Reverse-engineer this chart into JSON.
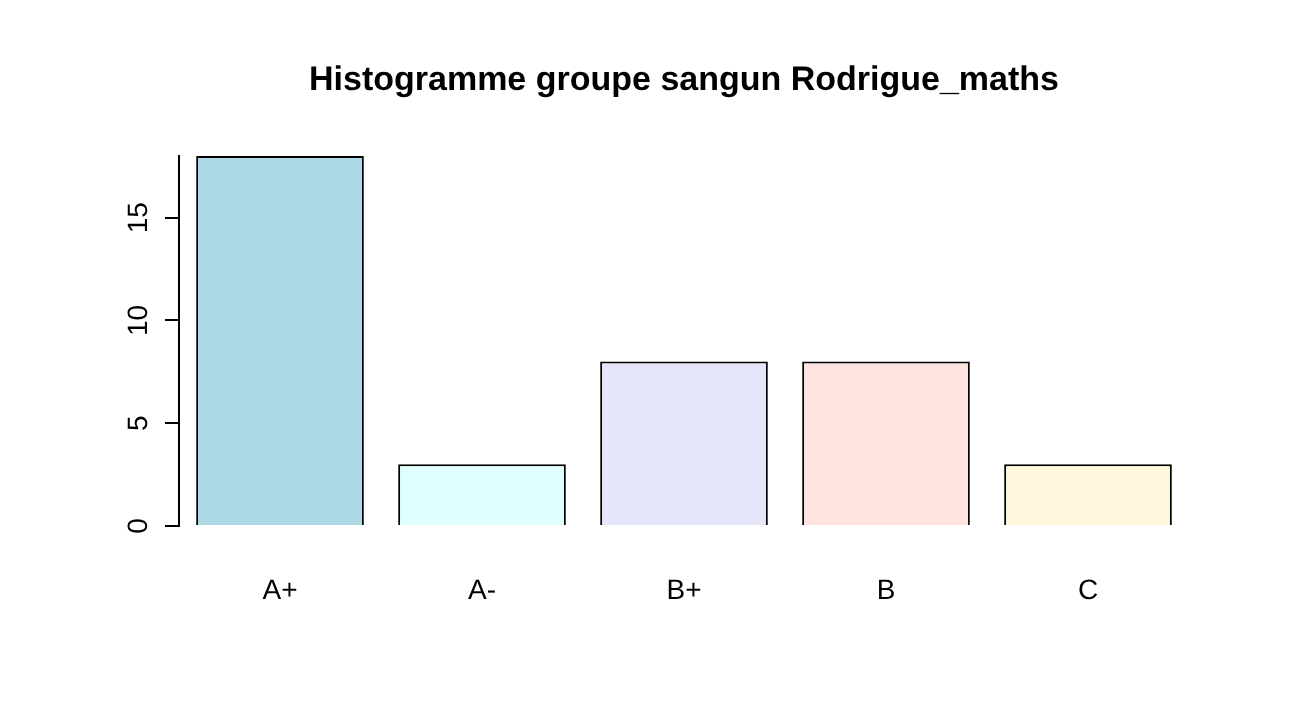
{
  "chart_data": {
    "type": "bar",
    "title": "Histogramme groupe sangun Rodrigue_maths",
    "categories": [
      "A+",
      "A-",
      "B+",
      "B",
      "C"
    ],
    "values": [
      18,
      3,
      8,
      8,
      3
    ],
    "colors": [
      "#add8e6",
      "#e0ffff",
      "#e6e6fa",
      "#ffe4e1",
      "#fff8dc"
    ],
    "ylim": [
      0,
      18
    ],
    "yticks": [
      0,
      5,
      10,
      15
    ],
    "grid": false
  }
}
